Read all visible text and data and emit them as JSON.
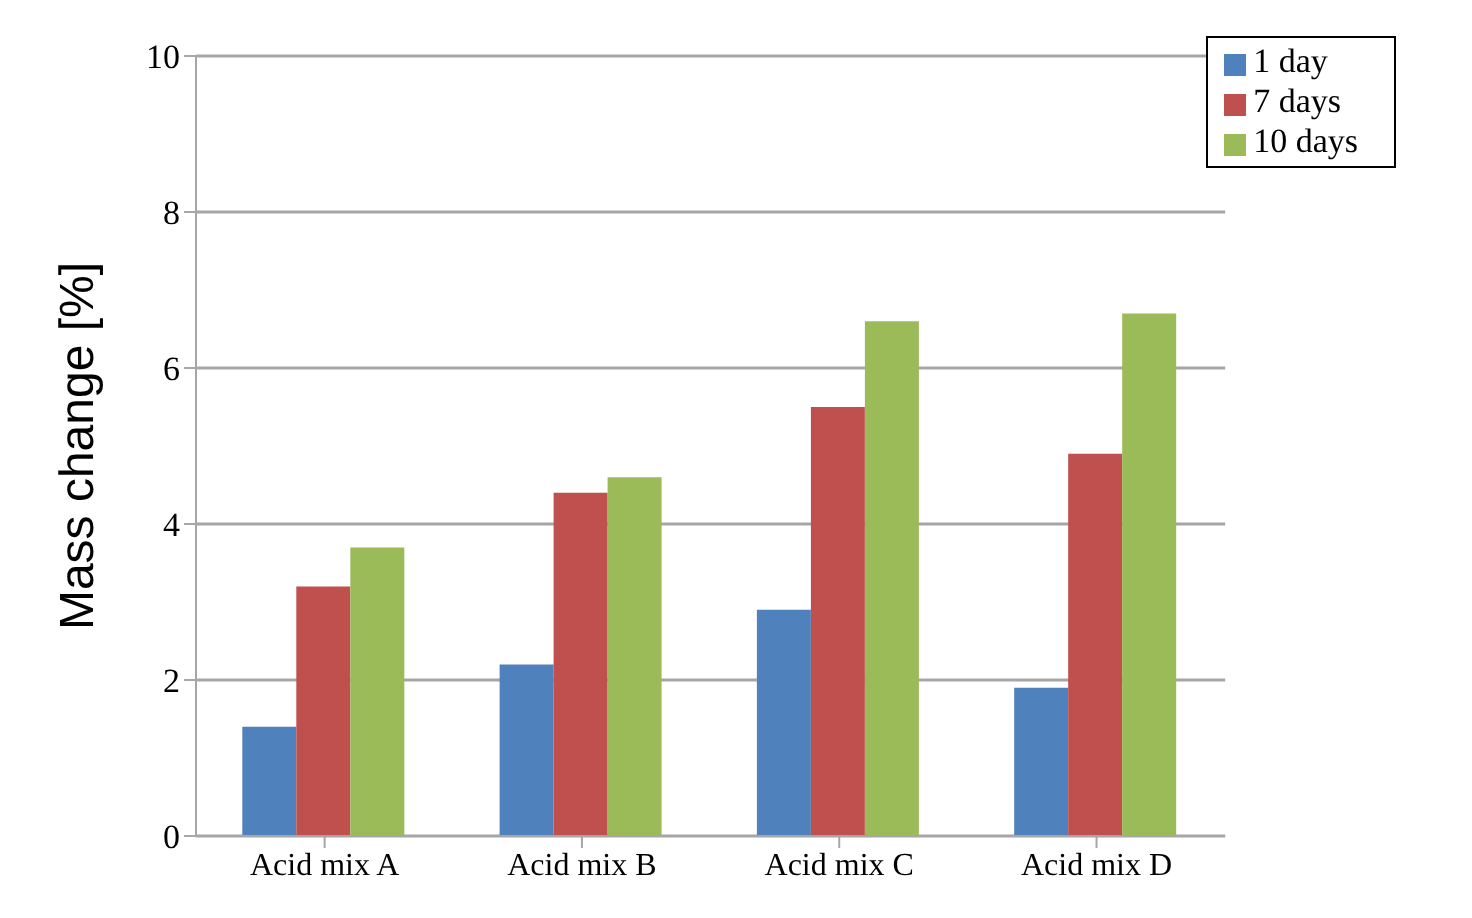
{
  "chart_data": {
    "type": "bar",
    "ylabel": "Mass change [%]",
    "categories": [
      "Acid mix A",
      "Acid mix B",
      "Acid mix C",
      "Acid mix D"
    ],
    "series": [
      {
        "name": "1 day",
        "color": "#4f81bd",
        "values": [
          1.4,
          2.2,
          2.9,
          1.9
        ]
      },
      {
        "name": "7 days",
        "color": "#c0504d",
        "values": [
          3.2,
          4.4,
          5.5,
          4.9
        ]
      },
      {
        "name": "10 days",
        "color": "#9bbb59",
        "values": [
          3.7,
          4.6,
          6.6,
          6.7
        ]
      }
    ],
    "ylim": [
      0,
      10
    ],
    "yticks": [
      0,
      2,
      4,
      6,
      8,
      10
    ],
    "grid": "y",
    "legend": "top right"
  }
}
